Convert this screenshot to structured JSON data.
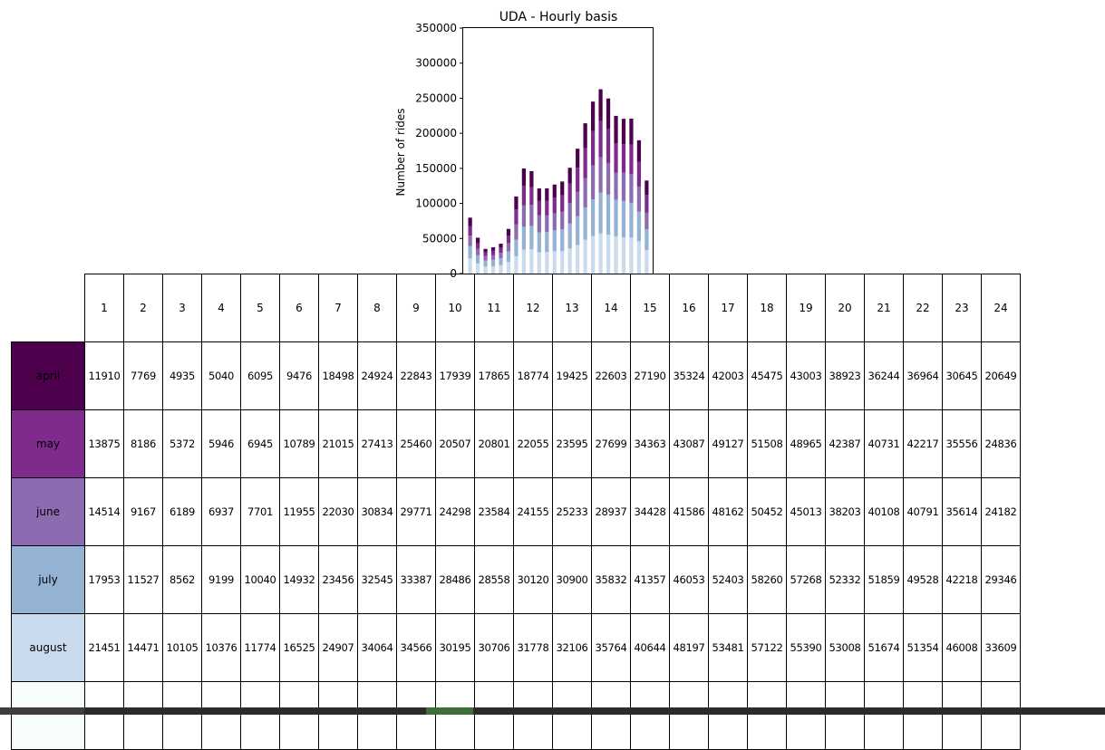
{
  "colors": [
    "#4d004b",
    "#7f2a8d",
    "#8c6bb1",
    "#94b2d4",
    "#c9dbec",
    "#f7fcfd"
  ],
  "chart_data": {
    "type": "bar",
    "stacked": true,
    "title": "UDA - Hourly basis",
    "ylabel": "Number of rides",
    "xlabel": "",
    "ylim": [
      0,
      350000
    ],
    "yticks": [
      0,
      50000,
      100000,
      150000,
      200000,
      250000,
      300000,
      350000
    ],
    "categories": [
      "1",
      "2",
      "3",
      "4",
      "5",
      "6",
      "7",
      "8",
      "9",
      "10",
      "11",
      "12",
      "13",
      "14",
      "15",
      "16",
      "17",
      "18",
      "19",
      "20",
      "21",
      "22",
      "23",
      "24"
    ],
    "series": [
      {
        "name": "august",
        "values": [
          21451,
          14471,
          10105,
          10376,
          11774,
          16525,
          24907,
          34064,
          34566,
          30195,
          30706,
          31778,
          32106,
          35764,
          40644,
          48197,
          53481,
          57122,
          55390,
          53008,
          51674,
          51354,
          46008,
          33609
        ]
      },
      {
        "name": "july",
        "values": [
          17953,
          11527,
          8562,
          9199,
          10040,
          14932,
          23456,
          32545,
          33387,
          28486,
          28558,
          30120,
          30900,
          35832,
          41357,
          46053,
          52403,
          58260,
          57268,
          52332,
          51859,
          49528,
          42218,
          29346
        ]
      },
      {
        "name": "june",
        "values": [
          14514,
          9167,
          6189,
          6937,
          7701,
          11955,
          22030,
          30834,
          29771,
          24298,
          23584,
          24155,
          25233,
          28937,
          34428,
          41586,
          48162,
          50452,
          45013,
          38203,
          40108,
          40791,
          35614,
          24182
        ]
      },
      {
        "name": "may",
        "values": [
          13875,
          8186,
          5372,
          5946,
          6945,
          10789,
          21015,
          27413,
          25460,
          20507,
          20801,
          22055,
          23595,
          27699,
          34363,
          43087,
          49127,
          51508,
          48965,
          42387,
          40731,
          42217,
          35556,
          24836
        ]
      },
      {
        "name": "april",
        "values": [
          11910,
          7769,
          4935,
          5040,
          6095,
          9476,
          18498,
          24924,
          22843,
          17939,
          17865,
          18774,
          19425,
          22603,
          27190,
          35324,
          42003,
          45475,
          43003,
          38923,
          36244,
          36964,
          30645,
          20649
        ]
      }
    ]
  },
  "table": {
    "columns": [
      "1",
      "2",
      "3",
      "4",
      "5",
      "6",
      "7",
      "8",
      "9",
      "10",
      "11",
      "12",
      "13",
      "14",
      "15",
      "16",
      "17",
      "18",
      "19",
      "20",
      "21",
      "22",
      "23",
      "24"
    ],
    "rows": [
      {
        "label": "april",
        "color": "#4d004b",
        "values": [
          "11910",
          "7769",
          "4935",
          "5040",
          "6095",
          "9476",
          "18498",
          "24924",
          "22843",
          "17939",
          "17865",
          "18774",
          "19425",
          "22603",
          "27190",
          "35324",
          "42003",
          "45475",
          "43003",
          "38923",
          "36244",
          "36964",
          "30645",
          "20649"
        ]
      },
      {
        "label": "may",
        "color": "#7f2a8d",
        "values": [
          "13875",
          "8186",
          "5372",
          "5946",
          "6945",
          "10789",
          "21015",
          "27413",
          "25460",
          "20507",
          "20801",
          "22055",
          "23595",
          "27699",
          "34363",
          "43087",
          "49127",
          "51508",
          "48965",
          "42387",
          "40731",
          "42217",
          "35556",
          "24836"
        ]
      },
      {
        "label": "june",
        "color": "#8c6bb1",
        "values": [
          "14514",
          "9167",
          "6189",
          "6937",
          "7701",
          "11955",
          "22030",
          "30834",
          "29771",
          "24298",
          "23584",
          "24155",
          "25233",
          "28937",
          "34428",
          "41586",
          "48162",
          "50452",
          "45013",
          "38203",
          "40108",
          "40791",
          "35614",
          "24182"
        ]
      },
      {
        "label": "july",
        "color": "#94b2d4",
        "values": [
          "17953",
          "11527",
          "8562",
          "9199",
          "10040",
          "14932",
          "23456",
          "32545",
          "33387",
          "28486",
          "28558",
          "30120",
          "30900",
          "35832",
          "41357",
          "46053",
          "52403",
          "58260",
          "57268",
          "52332",
          "51859",
          "49528",
          "42218",
          "29346"
        ]
      },
      {
        "label": "august",
        "color": "#c9dbec",
        "values": [
          "21451",
          "14471",
          "10105",
          "10376",
          "11774",
          "16525",
          "24907",
          "34064",
          "34566",
          "30195",
          "30706",
          "31778",
          "32106",
          "35764",
          "40644",
          "48197",
          "53481",
          "57122",
          "55390",
          "53008",
          "51674",
          "51354",
          "46008",
          "33609"
        ]
      },
      {
        "label": "",
        "color": "#f7fcfd",
        "values": [
          "",
          "",
          "",
          "",
          "",
          "",
          "",
          "",
          "",
          "",
          "",
          "",
          "",
          "",
          "",
          "",
          "",
          "",
          "",
          "",
          "",
          "",
          "",
          ""
        ]
      }
    ]
  }
}
